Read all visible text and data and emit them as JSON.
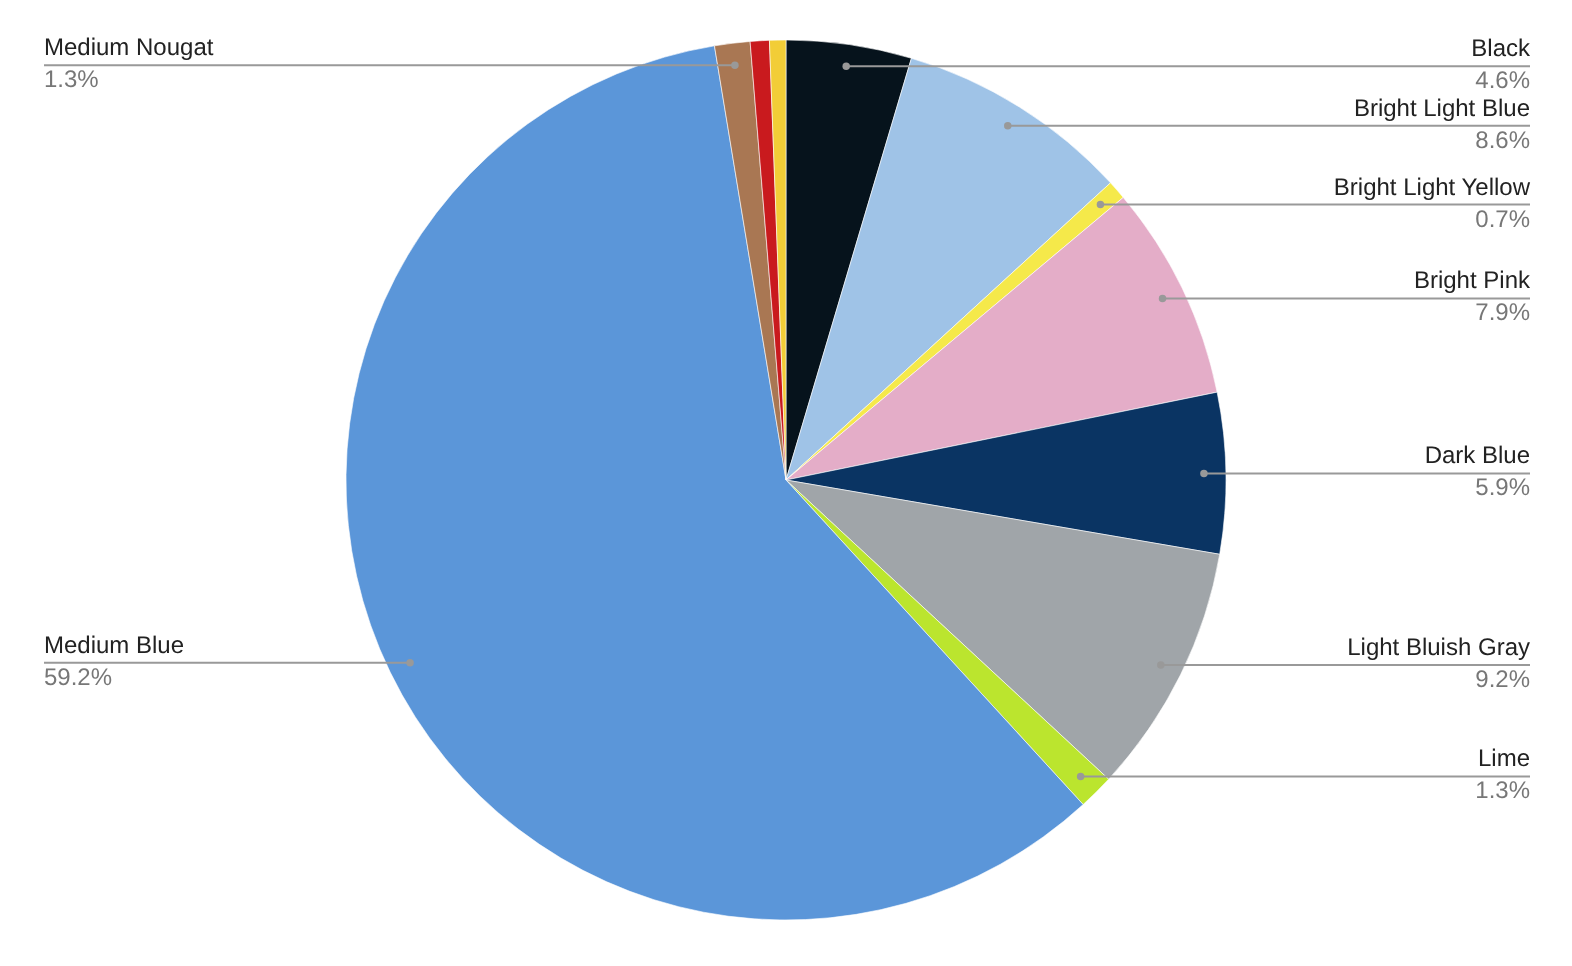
{
  "chart_data": {
    "type": "pie",
    "categories": [
      "Black",
      "Bright Light Blue",
      "Bright Light Yellow",
      "Bright Pink",
      "Dark Blue",
      "Light Bluish Gray",
      "Lime",
      "Medium Blue",
      "Medium Nougat",
      null,
      null
    ],
    "values": [
      4.6,
      8.6,
      0.7,
      7.9,
      5.9,
      9.2,
      1.3,
      59.2,
      1.3,
      0.7,
      0.6
    ],
    "value_labels": [
      "4.6%",
      "8.6%",
      "0.7%",
      "7.9%",
      "5.9%",
      "9.2%",
      "1.3%",
      "59.2%",
      "1.3%",
      null,
      null
    ],
    "colors": [
      "#06131c",
      "#9fc3e7",
      "#f5e94a",
      "#e4adc8",
      "#0a3463",
      "#a0a5a9",
      "#bbe52e",
      "#5b96d9",
      "#a97753",
      "#c91a1e",
      "#f2cd37"
    ]
  }
}
